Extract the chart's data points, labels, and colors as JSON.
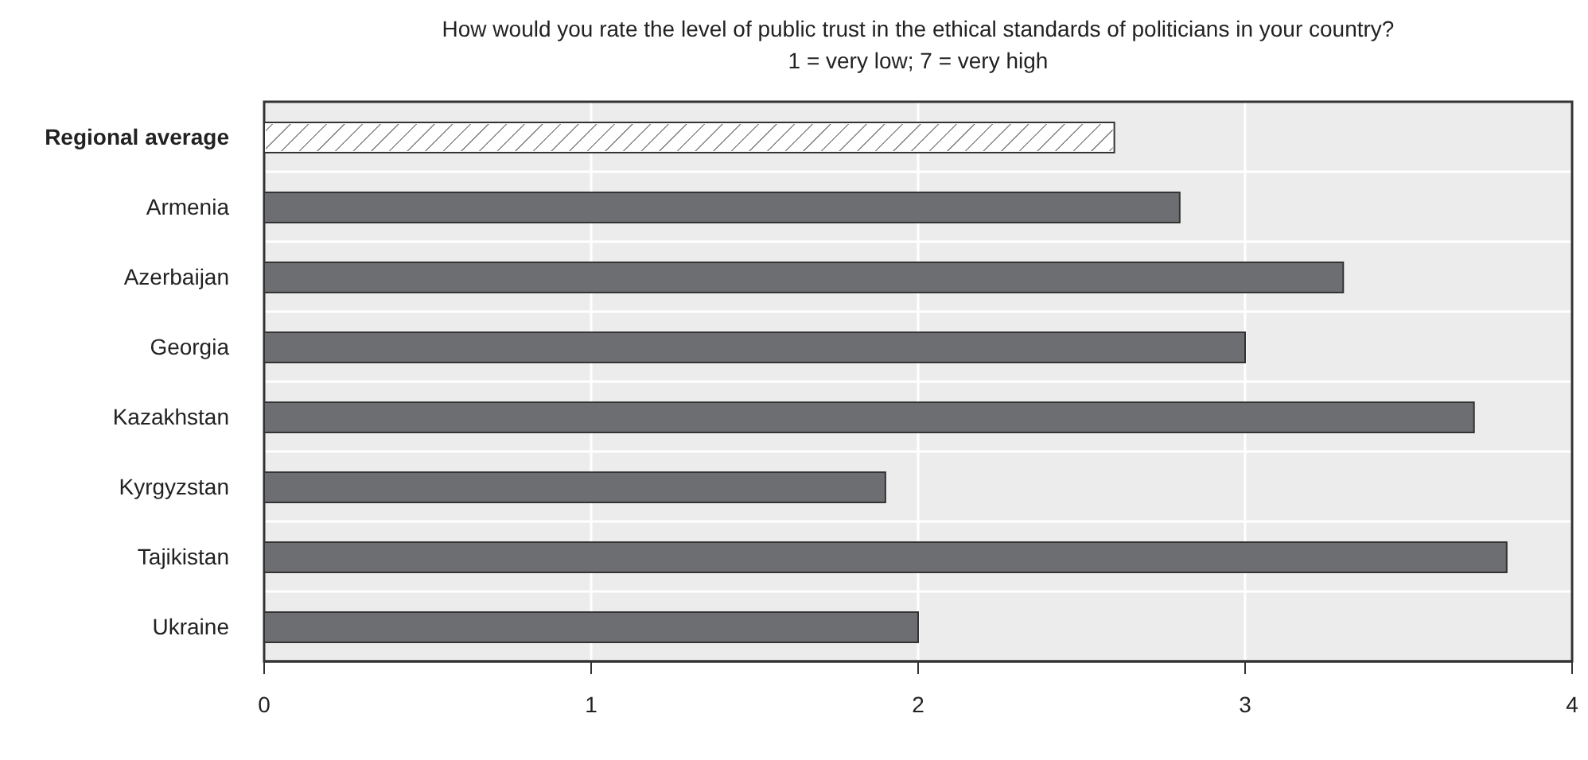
{
  "chart_data": {
    "type": "bar",
    "orientation": "horizontal",
    "title": "How would you rate the level of public trust in the ethical standards of politicians in your country?",
    "subtitle": "1 = very low; 7 = very high",
    "categories": [
      "Regional average",
      "Armenia",
      "Azerbaijan",
      "Georgia",
      "Kazakhstan",
      "Kyrgyzstan",
      "Tajikistan",
      "Ukraine"
    ],
    "values": [
      2.6,
      2.8,
      3.3,
      3.0,
      3.7,
      1.9,
      3.8,
      2.0
    ],
    "colors": [
      "#ffffff",
      "#6d6e71",
      "#6d6e71",
      "#6d6e71",
      "#6d6e71",
      "#6d6e71",
      "#6d6e71",
      "#6d6e71"
    ],
    "xlim": [
      0,
      4
    ],
    "xticks": [
      0,
      1,
      2,
      3,
      4
    ],
    "grid": true
  }
}
